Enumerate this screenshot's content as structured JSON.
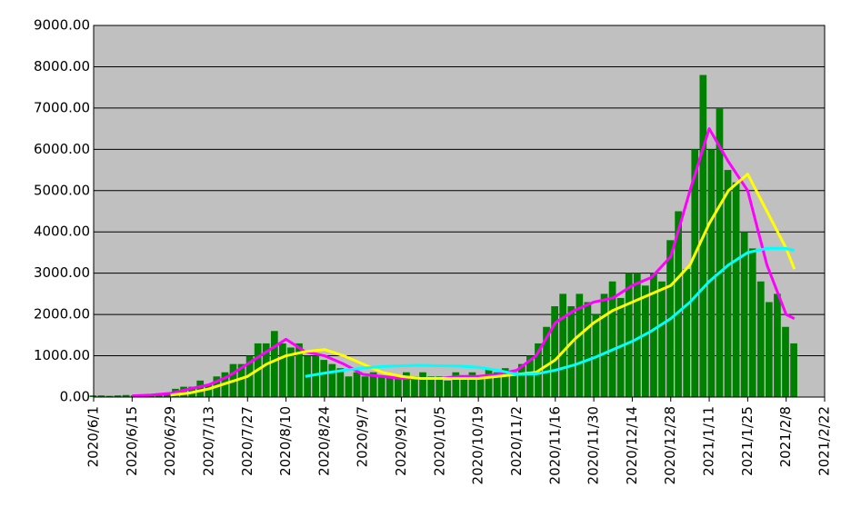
{
  "chart_data": {
    "type": "bar",
    "color": "#008000",
    "x": [
      "2020/6/1",
      "2020/6/4",
      "2020/6/7",
      "2020/6/10",
      "2020/6/13",
      "2020/6/16",
      "2020/6/19",
      "2020/6/22",
      "2020/6/25",
      "2020/6/28",
      "2020/7/1",
      "2020/7/4",
      "2020/7/7",
      "2020/7/10",
      "2020/7/13",
      "2020/7/16",
      "2020/7/19",
      "2020/7/22",
      "2020/7/25",
      "2020/7/28",
      "2020/7/31",
      "2020/8/3",
      "2020/8/6",
      "2020/8/9",
      "2020/8/12",
      "2020/8/15",
      "2020/8/18",
      "2020/8/21",
      "2020/8/24",
      "2020/8/27",
      "2020/8/30",
      "2020/9/2",
      "2020/9/5",
      "2020/9/8",
      "2020/9/11",
      "2020/9/14",
      "2020/9/17",
      "2020/9/20",
      "2020/9/23",
      "2020/9/26",
      "2020/9/29",
      "2020/10/2",
      "2020/10/5",
      "2020/10/8",
      "2020/10/11",
      "2020/10/14",
      "2020/10/17",
      "2020/10/20",
      "2020/10/23",
      "2020/10/26",
      "2020/10/29",
      "2020/11/1",
      "2020/11/4",
      "2020/11/7",
      "2020/11/10",
      "2020/11/13",
      "2020/11/16",
      "2020/11/19",
      "2020/11/22",
      "2020/11/25",
      "2020/11/28",
      "2020/12/1",
      "2020/12/4",
      "2020/12/7",
      "2020/12/10",
      "2020/12/13",
      "2020/12/16",
      "2020/12/19",
      "2020/12/22",
      "2020/12/25",
      "2020/12/28",
      "2020/12/31",
      "2021/1/3",
      "2021/1/6",
      "2021/1/9",
      "2021/1/12",
      "2021/1/15",
      "2021/1/18",
      "2021/1/21",
      "2021/1/24",
      "2021/1/27",
      "2021/1/30",
      "2021/2/2",
      "2021/2/5",
      "2021/2/8",
      "2021/2/11"
    ],
    "values": [
      40,
      40,
      30,
      40,
      50,
      40,
      60,
      60,
      90,
      100,
      200,
      250,
      250,
      400,
      300,
      500,
      600,
      800,
      800,
      1000,
      1300,
      1300,
      1600,
      1300,
      1200,
      1300,
      1000,
      1000,
      900,
      800,
      700,
      500,
      600,
      500,
      600,
      500,
      500,
      500,
      600,
      500,
      600,
      500,
      500,
      400,
      600,
      500,
      600,
      500,
      700,
      600,
      700,
      600,
      800,
      1000,
      1300,
      1700,
      2200,
      2500,
      2200,
      2500,
      2300,
      2000,
      2500,
      2800,
      2400,
      3000,
      3000,
      2700,
      3000,
      2800,
      3800,
      4500,
      3100,
      6000,
      7800,
      6000,
      7000,
      5500,
      5200,
      4000,
      3600,
      2800,
      2300,
      2500,
      1700,
      1300
    ],
    "lines": [
      {
        "color": "#ff00ff",
        "x": [
          "2020/6/15",
          "2020/6/22",
          "2020/6/29",
          "2020/7/6",
          "2020/7/13",
          "2020/7/20",
          "2020/7/27",
          "2020/8/3",
          "2020/8/10",
          "2020/8/17",
          "2020/8/24",
          "2020/8/31",
          "2020/9/7",
          "2020/9/14",
          "2020/9/21",
          "2020/9/28",
          "2020/10/5",
          "2020/10/12",
          "2020/10/19",
          "2020/10/26",
          "2020/11/2",
          "2020/11/9",
          "2020/11/16",
          "2020/11/23",
          "2020/11/30",
          "2020/12/7",
          "2020/12/14",
          "2020/12/21",
          "2020/12/28",
          "2021/1/4",
          "2021/1/11",
          "2021/1/18",
          "2021/1/25",
          "2021/2/1",
          "2021/2/8",
          "2021/2/11"
        ],
        "values": [
          30,
          50,
          90,
          200,
          300,
          500,
          800,
          1100,
          1400,
          1100,
          1000,
          800,
          550,
          500,
          450,
          450,
          450,
          500,
          500,
          550,
          650,
          1000,
          1800,
          2100,
          2300,
          2400,
          2700,
          2900,
          3400,
          5000,
          6500,
          5700,
          5000,
          3200,
          2000,
          1900
        ]
      },
      {
        "color": "#ffff00",
        "x": [
          "2020/6/29",
          "2020/7/6",
          "2020/7/13",
          "2020/7/20",
          "2020/7/27",
          "2020/8/3",
          "2020/8/10",
          "2020/8/17",
          "2020/8/24",
          "2020/8/31",
          "2020/9/7",
          "2020/9/14",
          "2020/9/21",
          "2020/9/28",
          "2020/10/5",
          "2020/10/12",
          "2020/10/19",
          "2020/10/26",
          "2020/11/2",
          "2020/11/9",
          "2020/11/16",
          "2020/11/23",
          "2020/11/30",
          "2020/12/7",
          "2020/12/14",
          "2020/12/21",
          "2020/12/28",
          "2021/1/4",
          "2021/1/11",
          "2021/1/18",
          "2021/1/25",
          "2021/2/1",
          "2021/2/8",
          "2021/2/11"
        ],
        "values": [
          50,
          100,
          200,
          350,
          500,
          800,
          1000,
          1100,
          1150,
          1000,
          800,
          600,
          500,
          450,
          450,
          450,
          450,
          500,
          550,
          600,
          900,
          1400,
          1800,
          2100,
          2300,
          2500,
          2700,
          3200,
          4200,
          5000,
          5400,
          4500,
          3600,
          3100
        ]
      },
      {
        "color": "#00ffff",
        "x": [
          "2020/8/17",
          "2020/8/24",
          "2020/8/31",
          "2020/9/7",
          "2020/9/14",
          "2020/9/21",
          "2020/9/28",
          "2020/10/5",
          "2020/10/12",
          "2020/10/19",
          "2020/10/26",
          "2020/11/2",
          "2020/11/9",
          "2020/11/16",
          "2020/11/23",
          "2020/11/30",
          "2020/12/7",
          "2020/12/14",
          "2020/12/21",
          "2020/12/28",
          "2021/1/4",
          "2021/1/11",
          "2021/1/18",
          "2021/1/25",
          "2021/2/1",
          "2021/2/8",
          "2021/2/11"
        ],
        "values": [
          500,
          580,
          650,
          700,
          740,
          760,
          770,
          760,
          750,
          720,
          650,
          550,
          560,
          650,
          780,
          950,
          1150,
          1350,
          1600,
          1900,
          2300,
          2800,
          3200,
          3500,
          3600,
          3600,
          3550
        ]
      }
    ],
    "xlim": [
      "2020/6/1",
      "2021/2/22"
    ],
    "xticks": [
      "2020/6/1",
      "2020/6/15",
      "2020/6/29",
      "2020/7/13",
      "2020/7/27",
      "2020/8/10",
      "2020/8/24",
      "2020/9/7",
      "2020/9/21",
      "2020/10/5",
      "2020/10/19",
      "2020/11/2",
      "2020/11/16",
      "2020/11/30",
      "2020/12/14",
      "2020/12/28",
      "2021/1/11",
      "2021/1/25",
      "2021/2/8",
      "2021/2/22"
    ],
    "ylim": [
      0,
      9000
    ],
    "yticks": [
      {
        "value": 0,
        "label": "0.00"
      },
      {
        "value": 1000,
        "label": "1000.00"
      },
      {
        "value": 2000,
        "label": "2000.00"
      },
      {
        "value": 3000,
        "label": "3000.00"
      },
      {
        "value": 4000,
        "label": "4000.00"
      },
      {
        "value": 5000,
        "label": "5000.00"
      },
      {
        "value": 6000,
        "label": "6000.00"
      },
      {
        "value": 7000,
        "label": "7000.00"
      },
      {
        "value": 8000,
        "label": "8000.00"
      },
      {
        "value": 9000,
        "label": "9000.00"
      }
    ],
    "grid": true
  }
}
